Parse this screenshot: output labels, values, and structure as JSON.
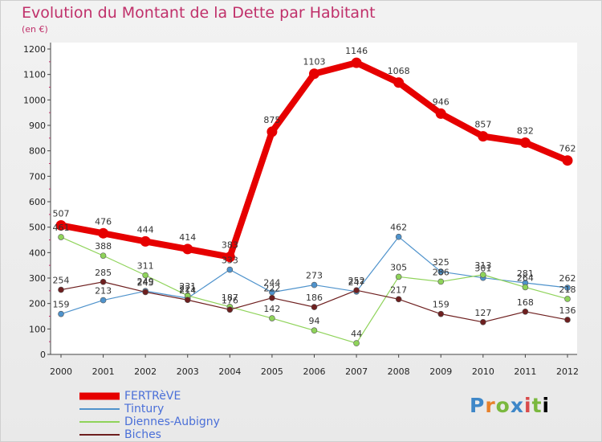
{
  "header": {
    "title": "Evolution du Montant de la Dette par Habitant",
    "unit": "(en €)"
  },
  "brand": {
    "letters": [
      "P",
      "r",
      "o",
      "x",
      "i",
      "t",
      "i"
    ]
  },
  "chart_data": {
    "type": "line",
    "x": [
      "2000",
      "2001",
      "2002",
      "2003",
      "2004",
      "2005",
      "2006",
      "2007",
      "2008",
      "2009",
      "2010",
      "2011",
      "2012"
    ],
    "ylim": [
      0,
      1200
    ],
    "yticks": [
      0,
      100,
      200,
      300,
      400,
      500,
      600,
      700,
      800,
      900,
      1000,
      1100,
      1200
    ],
    "grid": false,
    "legend_position": "bottom-left",
    "series": [
      {
        "name": "FERTRèVE",
        "color": "#e60000",
        "values": [
          507,
          476,
          444,
          414,
          383,
          875,
          1103,
          1146,
          1068,
          946,
          857,
          832,
          762
        ]
      },
      {
        "name": "Tintury",
        "color": "#4f93cc",
        "values": [
          159,
          213,
          249,
          221,
          333,
          244,
          273,
          247,
          462,
          325,
          301,
          281,
          262
        ]
      },
      {
        "name": "Diennes-Aubigny",
        "color": "#8fd35a",
        "values": [
          461,
          388,
          311,
          231,
          187,
          142,
          94,
          44,
          305,
          286,
          313,
          264,
          218
        ]
      },
      {
        "name": "Biches",
        "color": "#6e1f1f",
        "values": [
          254,
          285,
          245,
          214,
          176,
          222,
          186,
          252,
          217,
          159,
          127,
          168,
          136
        ]
      }
    ]
  }
}
